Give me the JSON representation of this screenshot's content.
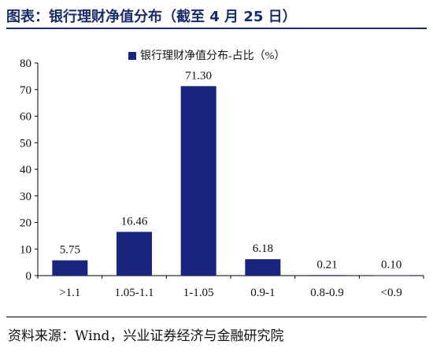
{
  "header": {
    "title": "图表：银行理财净值分布（截至 4 月 25 日）"
  },
  "footer": {
    "source": "资料来源：Wind，兴业证券经济与金融研究院"
  },
  "chart_data": {
    "type": "bar",
    "categories": [
      ">1.1",
      "1.05-1.1",
      "1-1.05",
      "0.9-1",
      "0.8-0.9",
      "<0.9"
    ],
    "series": [
      {
        "name": "银行理财净值分布-占比（%）",
        "values": [
          5.75,
          16.46,
          71.3,
          6.18,
          0.21,
          0.1
        ]
      }
    ],
    "data_labels": [
      "5.75",
      "16.46",
      "71.30",
      "6.18",
      "0.21",
      "0.10"
    ],
    "ylim": [
      0,
      80
    ],
    "yticks": [
      0,
      10,
      20,
      30,
      40,
      50,
      60,
      70,
      80
    ],
    "grid": false,
    "legend_position": "top-center",
    "colors": {
      "bar": "#1a2580",
      "title": "#1a2c6b"
    }
  }
}
